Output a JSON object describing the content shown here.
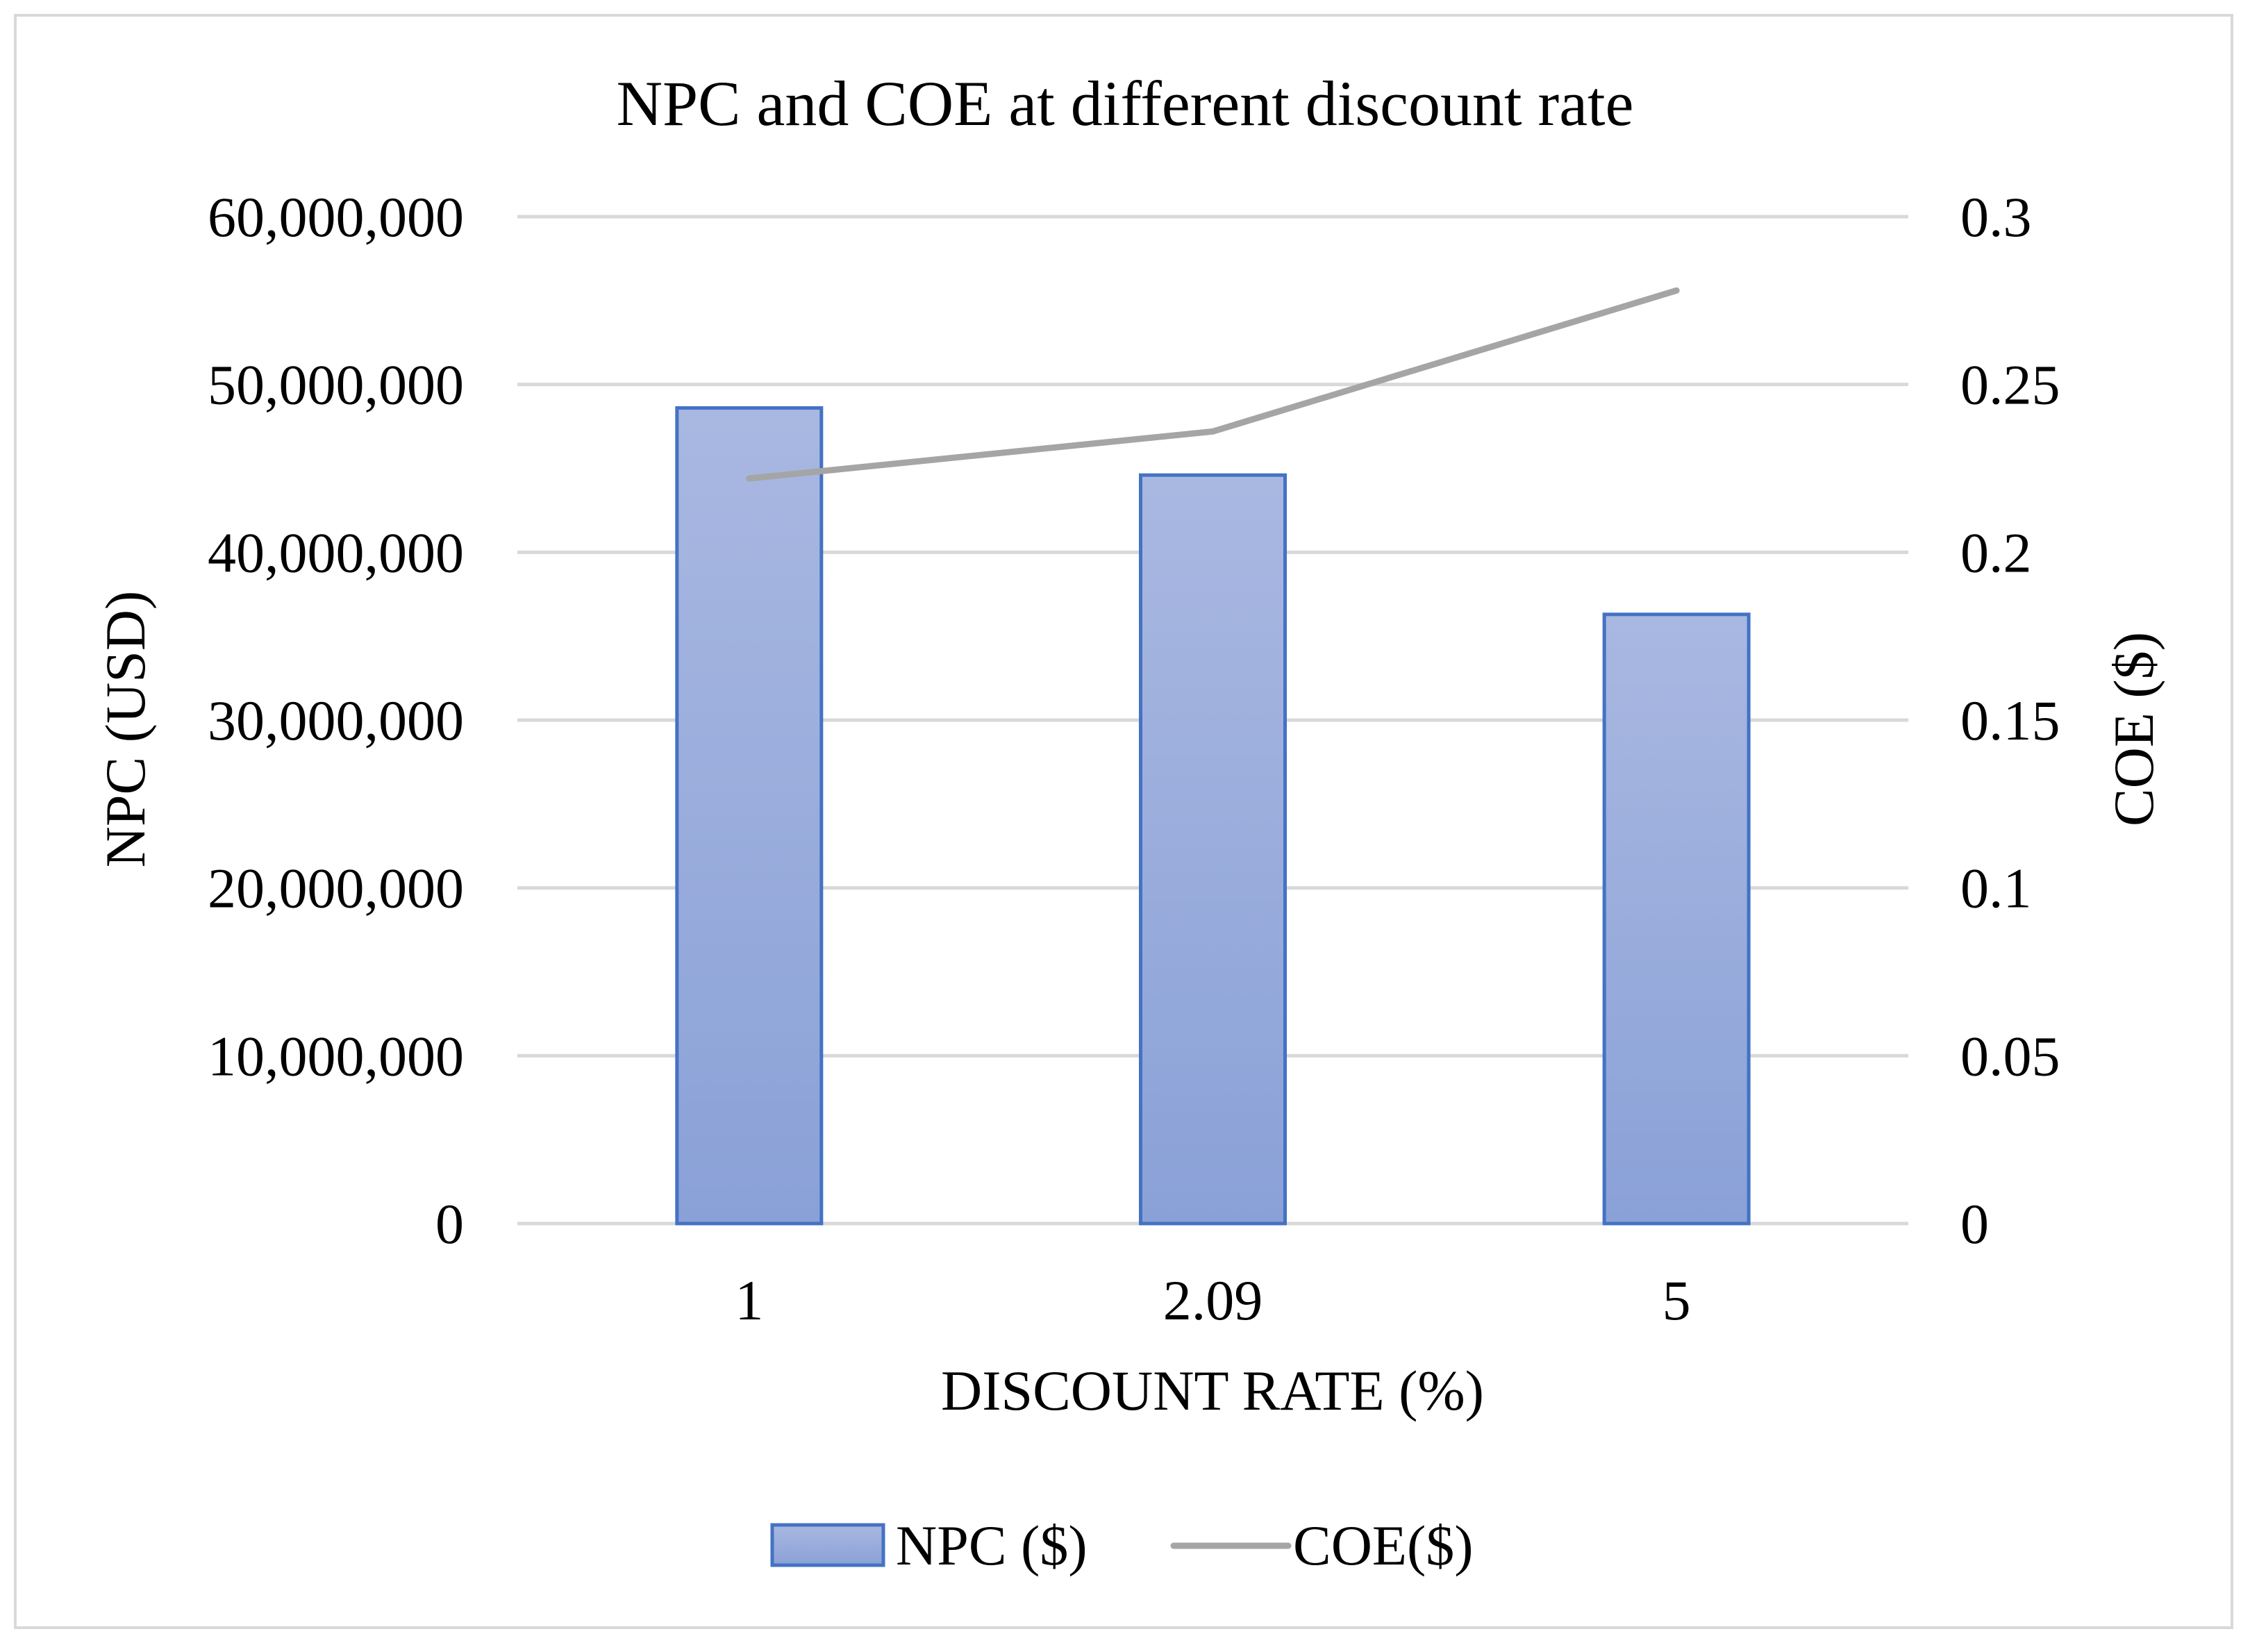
{
  "chart_data": {
    "type": "bar",
    "title": "NPC and COE at different discount rate",
    "xlabel": "DISCOUNT RATE (%)",
    "ylabel": "NPC (USD)",
    "y2label": "COE ($)",
    "categories": [
      "1",
      "2.09",
      "5"
    ],
    "series": [
      {
        "name": "NPC ($)",
        "type": "bar",
        "axis": "left",
        "values": [
          48600000,
          44600000,
          36300000
        ]
      },
      {
        "name": "COE($)",
        "type": "line",
        "axis": "right",
        "values": [
          0.222,
          0.236,
          0.278
        ]
      }
    ],
    "ylim": [
      0,
      60000000
    ],
    "y2lim": [
      0,
      0.3
    ],
    "y_ticks": [
      "0",
      "10,000,000",
      "20,000,000",
      "30,000,000",
      "40,000,000",
      "50,000,000",
      "60,000,000"
    ],
    "y2_ticks": [
      "0",
      "0.05",
      "0.1",
      "0.15",
      "0.2",
      "0.25",
      "0.3"
    ],
    "grid": true,
    "legend": "bottom-center",
    "colors": {
      "bar_fill_top": "#a9b8e1",
      "bar_fill_bottom": "#8aa1d7",
      "bar_stroke": "#4472c4",
      "line": "#a5a5a5",
      "grid": "#d9d9d9"
    }
  }
}
